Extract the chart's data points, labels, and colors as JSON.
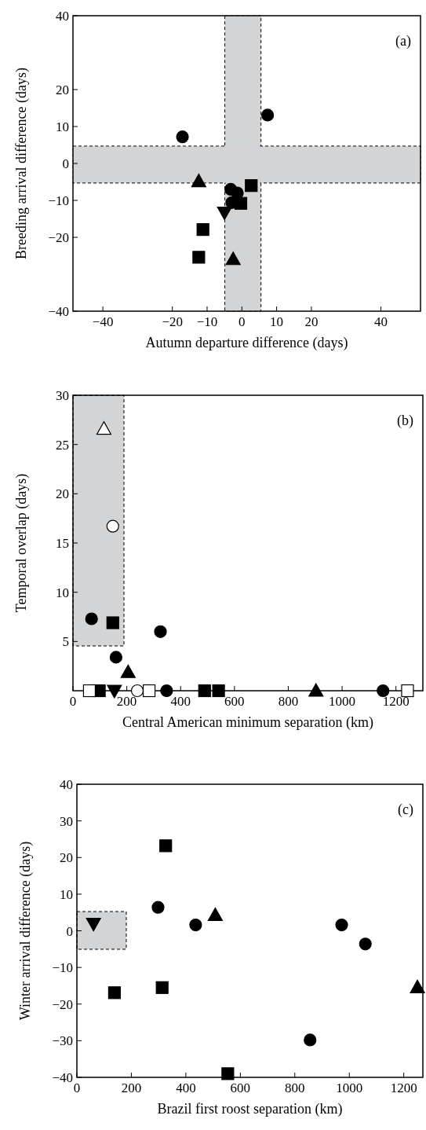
{
  "chart_data": [
    {
      "type": "scatter",
      "xlabel": "Autumn departure difference (days)",
      "ylabel": "Breeding arrival difference (days)",
      "annotations": [
        "(a)"
      ],
      "xlim": [
        -48.6,
        51.4
      ],
      "xticks": [
        -40,
        -20,
        -10,
        0,
        10,
        20,
        40
      ],
      "ylim": [
        -40,
        40
      ],
      "yticks": [
        -40,
        -20,
        -10,
        0,
        10,
        20,
        40
      ],
      "bands": [
        {
          "axis": "x",
          "from": -4.9,
          "to": 5.5,
          "color": "#d3d4d6"
        },
        {
          "axis": "y",
          "from": -5.3,
          "to": 4.7,
          "color": "#d3d4d6"
        }
      ],
      "series": [
        {
          "marker": "circle",
          "color": "#000000",
          "x": [
            -17.1,
            7.4,
            -3.2,
            -1.3,
            -2.9
          ],
          "values": [
            7.2,
            13.1,
            -7.0,
            -8.0,
            -10.6
          ]
        },
        {
          "marker": "square",
          "color": "#000000",
          "x": [
            2.7,
            -0.3,
            -11.2,
            -12.4
          ],
          "values": [
            -6.0,
            -10.8,
            -17.9,
            -25.4
          ]
        },
        {
          "marker": "triangle",
          "color": "#000000",
          "x": [
            -12.4,
            -2.5
          ],
          "values": [
            -4.8,
            -25.9
          ]
        },
        {
          "marker": "triangle-down",
          "color": "#000000",
          "x": [
            -5.0
          ],
          "values": [
            -13.3
          ]
        }
      ]
    },
    {
      "type": "scatter",
      "xlabel": "Central American minimum separation (km)",
      "ylabel": "Temporal overlap (days)",
      "annotations": [
        "(b)"
      ],
      "xlim": [
        0,
        1300
      ],
      "xticks": [
        0,
        200,
        400,
        600,
        800,
        1000,
        1200
      ],
      "ylim": [
        0,
        30
      ],
      "yticks": [
        5,
        10,
        15,
        20,
        25,
        30
      ],
      "series": [
        {
          "marker": "circle",
          "color": "#000000",
          "x": [
            348,
            1152,
            69,
            325,
            160
          ],
          "values": [
            0,
            0,
            7.3,
            6.0,
            3.4
          ]
        },
        {
          "marker": "square",
          "color": "#000000",
          "x": [
            98,
            489,
            541,
            148
          ],
          "values": [
            0,
            0,
            0,
            6.9
          ]
        },
        {
          "marker": "triangle",
          "color": "#000000",
          "x": [
            903,
            205
          ],
          "values": [
            0,
            1.9
          ]
        },
        {
          "marker": "triangle-down",
          "color": "#000000",
          "x": [
            154
          ],
          "values": [
            0
          ]
        },
        {
          "marker": "circle",
          "color": "#ffffff",
          "x": [
            239,
            148
          ],
          "values": [
            0,
            16.7
          ]
        },
        {
          "marker": "square",
          "color": "#ffffff",
          "x": [
            61,
            283,
            1243
          ],
          "values": [
            0,
            0,
            0
          ]
        },
        {
          "marker": "triangle",
          "color": "#ffffff",
          "x": [
            115
          ],
          "values": [
            26.6
          ]
        }
      ]
    },
    {
      "type": "scatter",
      "xlabel": "Brazil first roost separation (km)",
      "ylabel": "Winter arrival difference (days)",
      "annotations": [
        "(c)"
      ],
      "xlim": [
        0,
        1270
      ],
      "xticks": [
        0,
        200,
        400,
        600,
        800,
        1000,
        1200
      ],
      "ylim": [
        -40,
        40
      ],
      "yticks": [
        -40,
        -30,
        -20,
        -10,
        0,
        10,
        20,
        30,
        40
      ],
      "series": [
        {
          "marker": "circle",
          "color": "#000000",
          "x": [
            298,
            436,
            972,
            1059,
            856
          ],
          "values": [
            6.4,
            1.6,
            1.6,
            -3.6,
            -29.8
          ]
        },
        {
          "marker": "square",
          "color": "#000000",
          "x": [
            326,
            138,
            313,
            554
          ],
          "values": [
            23.2,
            -16.9,
            -15.5,
            -39
          ]
        },
        {
          "marker": "triangle",
          "color": "#000000",
          "x": [
            508,
            1250
          ],
          "values": [
            4.3,
            -15.4
          ]
        },
        {
          "marker": "triangle-down",
          "color": "#000000",
          "x": [
            61
          ],
          "values": [
            1.9
          ]
        }
      ]
    }
  ]
}
